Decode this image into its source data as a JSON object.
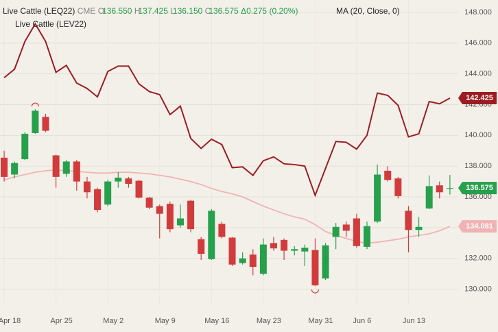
{
  "chart_data": {
    "type": "candlestick",
    "title": "Live Cattle (LEQ22)",
    "exchange": "CME",
    "quote": {
      "o_label": "O",
      "o": "136.550",
      "h_label": "H",
      "h": "137.425",
      "l_label": "L",
      "l": "136.150",
      "c_label": "C",
      "c": "136.575",
      "change": "Δ0.275 (0.20%)"
    },
    "indicator_label": "MA (20, Close, 0)",
    "ylim": [
      129.0,
      148.8
    ],
    "yticks": [
      {
        "value": 130,
        "label": "130.000"
      },
      {
        "value": 132,
        "label": "132.000"
      },
      {
        "value": 134,
        "label": "134.000"
      },
      {
        "value": 136,
        "label": "136.000"
      },
      {
        "value": 138,
        "label": "138.000"
      },
      {
        "value": 140,
        "label": "140.000"
      },
      {
        "value": 142,
        "label": "142.000"
      },
      {
        "value": 144,
        "label": "144.000"
      },
      {
        "value": 146,
        "label": "146.000"
      },
      {
        "value": 148,
        "label": "148.000"
      }
    ],
    "xlim": [
      -0.4,
      43.8
    ],
    "xticks": [
      {
        "value": 0,
        "label": "Apr 18"
      },
      {
        "value": 5,
        "label": "Apr 25"
      },
      {
        "value": 10,
        "label": "May 2"
      },
      {
        "value": 15,
        "label": "May 9"
      },
      {
        "value": 20,
        "label": "May 16"
      },
      {
        "value": 25,
        "label": "May 23"
      },
      {
        "value": 30,
        "label": "May 31"
      },
      {
        "value": 34,
        "label": "Jun 6"
      },
      {
        "value": 39,
        "label": "Jun 13"
      }
    ],
    "grid": true,
    "up_color": "#27a04c",
    "down_color": "#d23b3b",
    "open": [
      138.55,
      137.45,
      138.45,
      140.15,
      141.2,
      138.7,
      137.5,
      138.3,
      137.0,
      136.5,
      135.5,
      137.0,
      137.2,
      137.05,
      135.95,
      135.4,
      135.55,
      134.15,
      135.75,
      133.25,
      131.95,
      134.25,
      133.35,
      131.7,
      132.25,
      131.0,
      133.0,
      133.2,
      132.5,
      132.45,
      132.55,
      130.7,
      133.4,
      134.2,
      134.6,
      132.75,
      134.4,
      137.7,
      137.2,
      135.1,
      133.85,
      135.25,
      136.75,
      136.55
    ],
    "high": [
      139.0,
      138.3,
      140.2,
      141.7,
      141.4,
      138.75,
      138.4,
      138.4,
      137.3,
      136.6,
      137.1,
      137.6,
      137.3,
      137.1,
      136.0,
      135.5,
      135.7,
      135.5,
      135.8,
      133.4,
      135.2,
      134.4,
      133.4,
      132.4,
      132.6,
      133.3,
      133.4,
      133.3,
      132.8,
      132.9,
      133.3,
      133.0,
      134.3,
      134.4,
      134.9,
      134.4,
      138.1,
      138.0,
      137.3,
      135.4,
      134.7,
      137.4,
      137.0,
      137.425
    ],
    "low": [
      137.0,
      137.2,
      138.4,
      140.1,
      140.2,
      136.6,
      137.3,
      136.4,
      135.9,
      135.0,
      135.4,
      136.6,
      136.6,
      135.9,
      135.2,
      133.3,
      133.7,
      134.0,
      133.7,
      131.9,
      131.9,
      133.3,
      131.5,
      131.6,
      130.9,
      130.9,
      132.5,
      131.9,
      132.2,
      131.5,
      130.2,
      130.6,
      132.6,
      133.4,
      132.7,
      132.6,
      134.3,
      137.0,
      135.9,
      132.4,
      133.4,
      135.2,
      135.9,
      136.15
    ],
    "close": [
      137.3,
      138.2,
      140.1,
      141.6,
      140.3,
      137.3,
      138.3,
      137.0,
      136.3,
      135.15,
      137.0,
      137.25,
      136.85,
      135.95,
      135.3,
      134.9,
      133.9,
      134.6,
      133.9,
      132.3,
      135.1,
      133.4,
      131.6,
      132.0,
      131.45,
      132.9,
      132.65,
      132.5,
      132.6,
      132.7,
      130.25,
      132.85,
      134.05,
      133.8,
      132.8,
      134.1,
      137.45,
      137.1,
      136.05,
      133.85,
      134.05,
      136.7,
      136.3,
      136.575
    ],
    "series": [
      {
        "name": "Live Cattle (LEV22)",
        "color": "#9c1c22",
        "values": [
          143.75,
          144.3,
          146.1,
          147.25,
          146.1,
          144.1,
          144.55,
          143.4,
          143.05,
          142.5,
          144.15,
          144.5,
          144.5,
          143.35,
          142.85,
          142.65,
          141.35,
          141.9,
          139.8,
          139.15,
          139.75,
          139.4,
          137.9,
          137.95,
          137.4,
          138.35,
          138.6,
          138.15,
          138.1,
          138.0,
          136.1,
          137.85,
          139.6,
          139.55,
          139.1,
          140.0,
          142.75,
          142.6,
          141.95,
          139.9,
          140.1,
          142.2,
          142.05,
          142.425
        ]
      },
      {
        "name": "MA",
        "color": "#f0b3b3",
        "values": [
          137.1,
          137.3,
          137.45,
          137.6,
          137.7,
          137.75,
          137.7,
          137.65,
          137.6,
          137.55,
          137.55,
          137.6,
          137.6,
          137.55,
          137.5,
          137.4,
          137.3,
          137.15,
          137.0,
          136.8,
          136.55,
          136.35,
          136.2,
          136.0,
          135.7,
          135.4,
          135.15,
          134.9,
          134.7,
          134.55,
          134.2,
          133.75,
          133.5,
          133.3,
          133.1,
          133.0,
          133.05,
          133.15,
          133.25,
          133.4,
          133.5,
          133.6,
          133.8,
          134.081
        ]
      }
    ]
  }
}
